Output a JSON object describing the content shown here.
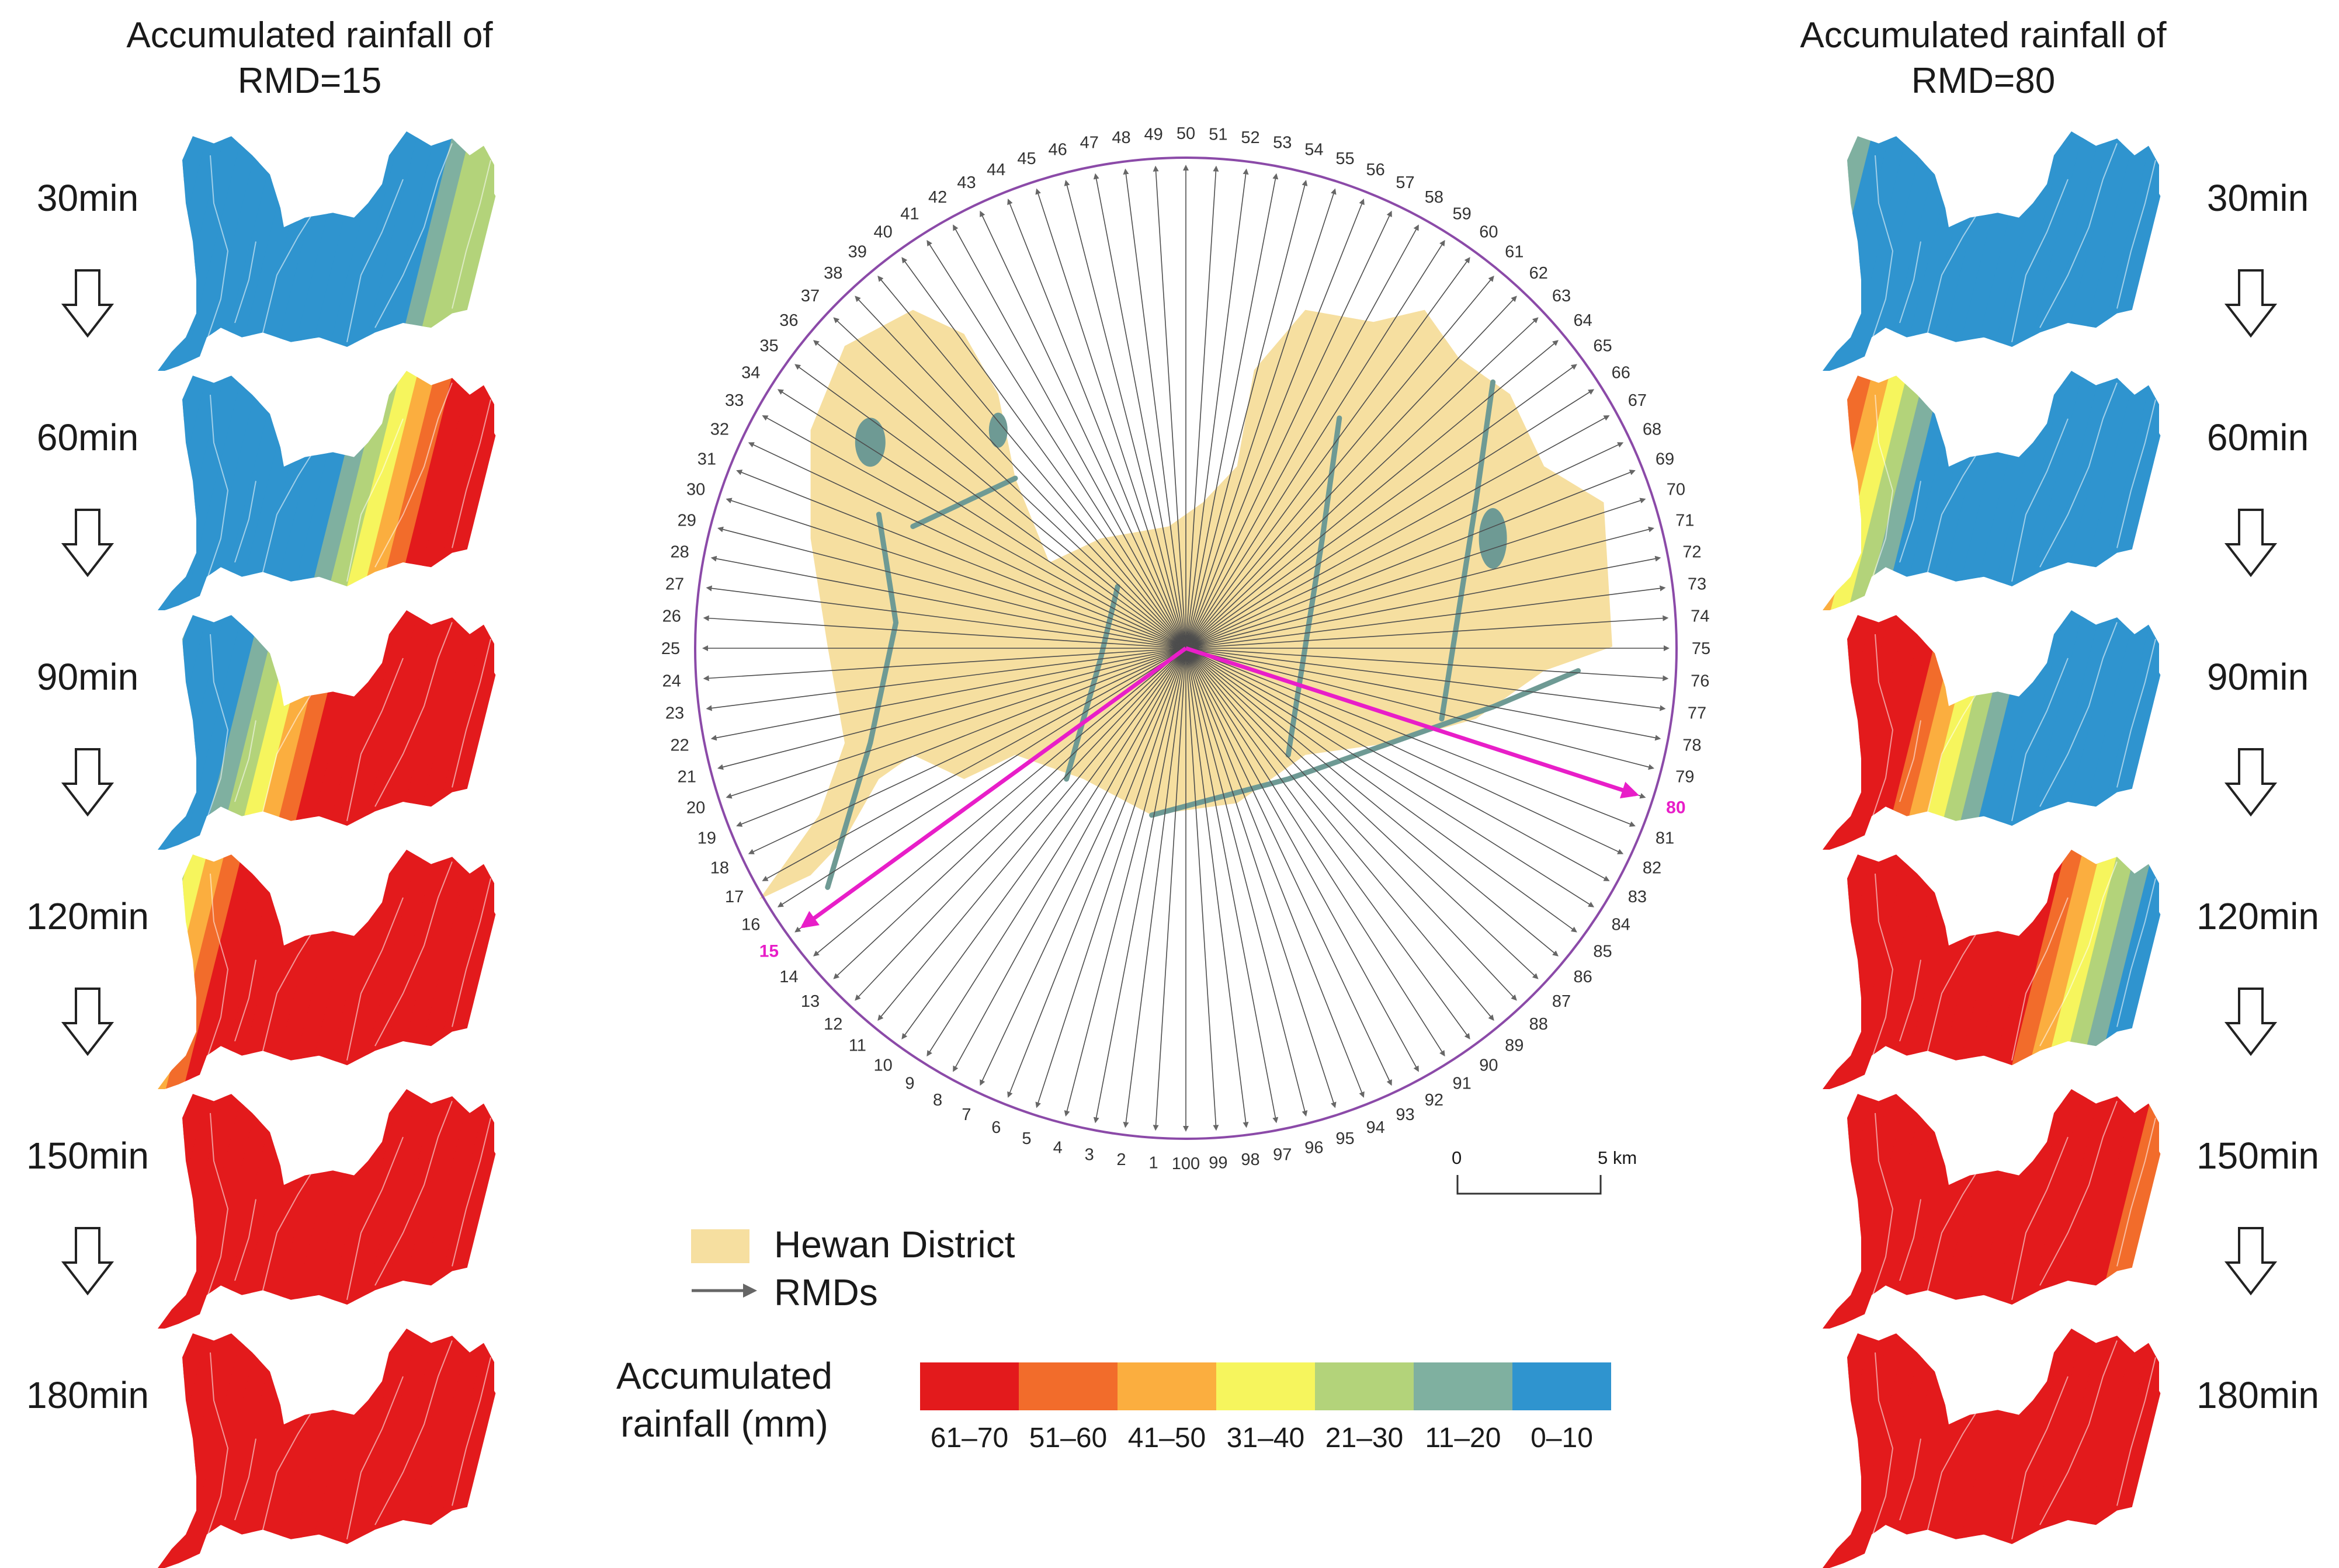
{
  "left_title": "Accumulated rainfall of RMD=15",
  "right_title": "Accumulated rainfall of RMD=80",
  "time_steps": [
    "30min",
    "60min",
    "90min",
    "120min",
    "150min",
    "180min"
  ],
  "legend": {
    "district_label": "Hewan District",
    "rmd_label": "RMDs",
    "accumulated_title": "Accumulated rainfall (mm)",
    "classes": [
      {
        "label": "61–70",
        "color": "#e31a1c"
      },
      {
        "label": "51–60",
        "color": "#f26c2b"
      },
      {
        "label": "41–50",
        "color": "#fbae3f"
      },
      {
        "label": "31–40",
        "color": "#f6f55d"
      },
      {
        "label": "21–30",
        "color": "#b3d37a"
      },
      {
        "label": "11–20",
        "color": "#7fb0a0"
      },
      {
        "label": "0–10",
        "color": "#2f94cf"
      }
    ]
  },
  "scale_bar": {
    "start": "0",
    "end": "5 km"
  },
  "spokes": {
    "count": 100,
    "highlighted": [
      "15",
      "80"
    ]
  },
  "rmd15_frames": [
    {
      "time": "30min",
      "description": "storm entering from east edge",
      "class_sequence": [
        "0–10",
        "0–10",
        "0–10",
        "0–10",
        "0–10",
        "0–10",
        "0–10",
        "0–10",
        "0–10",
        "0–10",
        "0–10",
        "0–10",
        "0–10",
        "0–10",
        "0–10",
        "0–10",
        "0–10",
        "11–20",
        "21–30",
        "21–30"
      ]
    },
    {
      "time": "60min",
      "class_sequence": [
        "0–10",
        "0–10",
        "0–10",
        "0–10",
        "0–10",
        "0–10",
        "0–10",
        "0–10",
        "0–10",
        "0–10",
        "0–10",
        "0–10",
        "11–20",
        "21–30",
        "31–40",
        "41–50",
        "51–60",
        "61–70",
        "61–70",
        "61–70"
      ]
    },
    {
      "time": "90min",
      "class_sequence": [
        "11–20",
        "11–20",
        "0–10",
        "0–10",
        "0–10",
        "0–10",
        "11–20",
        "21–30",
        "31–40",
        "41–50",
        "51–60",
        "61–70",
        "61–70",
        "61–70",
        "61–70",
        "61–70",
        "61–70",
        "61–70",
        "61–70",
        "61–70"
      ]
    },
    {
      "time": "120min",
      "class_sequence": [
        "11–20",
        "21–30",
        "31–40",
        "41–50",
        "51–60",
        "61–70",
        "61–70",
        "61–70",
        "61–70",
        "61–70",
        "61–70",
        "61–70",
        "61–70",
        "61–70",
        "61–70",
        "61–70",
        "61–70",
        "61–70",
        "61–70",
        "61–70"
      ]
    },
    {
      "time": "150min",
      "class_sequence": [
        "51–60",
        "61–70",
        "61–70",
        "61–70",
        "61–70",
        "61–70",
        "61–70",
        "61–70",
        "61–70",
        "61–70",
        "61–70",
        "61–70",
        "61–70",
        "61–70",
        "61–70",
        "61–70",
        "61–70",
        "61–70",
        "61–70",
        "61–70"
      ]
    },
    {
      "time": "180min",
      "class_sequence": [
        "61–70",
        "61–70",
        "61–70",
        "61–70",
        "61–70",
        "61–70",
        "61–70",
        "61–70",
        "61–70",
        "61–70",
        "61–70",
        "61–70",
        "61–70",
        "61–70",
        "61–70",
        "61–70",
        "61–70",
        "61–70",
        "61–70",
        "61–70"
      ]
    }
  ],
  "rmd80_frames": [
    {
      "time": "30min",
      "class_sequence": [
        "21–30",
        "11–20",
        "11–20",
        "0–10",
        "0–10",
        "0–10",
        "0–10",
        "0–10",
        "0–10",
        "0–10",
        "0–10",
        "0–10",
        "0–10",
        "0–10",
        "0–10",
        "0–10",
        "0–10",
        "0–10",
        "0–10",
        "0–10"
      ]
    },
    {
      "time": "60min",
      "class_sequence": [
        "61–70",
        "51–60",
        "51–60",
        "41–50",
        "31–40",
        "21–30",
        "11–20",
        "0–10",
        "0–10",
        "0–10",
        "0–10",
        "0–10",
        "0–10",
        "0–10",
        "0–10",
        "0–10",
        "0–10",
        "0–10",
        "0–10",
        "0–10"
      ]
    },
    {
      "time": "90min",
      "class_sequence": [
        "61–70",
        "61–70",
        "61–70",
        "61–70",
        "61–70",
        "61–70",
        "61–70",
        "51–60",
        "41–50",
        "31–40",
        "21–30",
        "11–20",
        "0–10",
        "0–10",
        "0–10",
        "0–10",
        "0–10",
        "0–10",
        "0–10",
        "0–10"
      ]
    },
    {
      "time": "120min",
      "class_sequence": [
        "61–70",
        "61–70",
        "61–70",
        "61–70",
        "61–70",
        "61–70",
        "61–70",
        "61–70",
        "61–70",
        "61–70",
        "61–70",
        "61–70",
        "61–70",
        "61–70",
        "51–60",
        "41–50",
        "31–40",
        "21–30",
        "11–20",
        "0–10"
      ]
    },
    {
      "time": "150min",
      "class_sequence": [
        "61–70",
        "61–70",
        "61–70",
        "61–70",
        "61–70",
        "61–70",
        "61–70",
        "61–70",
        "61–70",
        "61–70",
        "61–70",
        "61–70",
        "61–70",
        "61–70",
        "61–70",
        "61–70",
        "61–70",
        "61–70",
        "61–70",
        "51–60"
      ]
    },
    {
      "time": "180min",
      "class_sequence": [
        "61–70",
        "61–70",
        "61–70",
        "61–70",
        "61–70",
        "61–70",
        "61–70",
        "61–70",
        "61–70",
        "61–70",
        "61–70",
        "61–70",
        "61–70",
        "61–70",
        "61–70",
        "61–70",
        "61–70",
        "61–70",
        "61–70",
        "61–70"
      ]
    }
  ],
  "colors": {
    "district_fill": "#f6dfa0",
    "river": "#6e9a94",
    "spoke": "#4d4d4d",
    "circle": "#8b4aa8",
    "highlight": "#e81ec8"
  }
}
